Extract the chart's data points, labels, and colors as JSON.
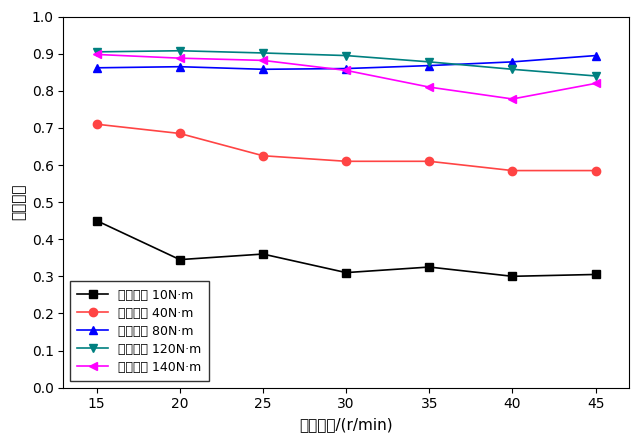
{
  "x": [
    15,
    20,
    25,
    30,
    35,
    40,
    45
  ],
  "series": [
    {
      "label": "输出转矩 10N·m",
      "color": "#000000",
      "marker": "s",
      "markerface": "#000000",
      "values": [
        0.45,
        0.345,
        0.36,
        0.31,
        0.325,
        0.3,
        0.305
      ]
    },
    {
      "label": "输出转矩 40N·m",
      "color": "#ff4444",
      "marker": "o",
      "markerface": "#ff4444",
      "values": [
        0.71,
        0.685,
        0.625,
        0.61,
        0.61,
        0.585,
        0.585
      ]
    },
    {
      "label": "输出转矩 80N·m",
      "color": "#0000ff",
      "marker": "^",
      "markerface": "#0000ff",
      "values": [
        0.862,
        0.865,
        0.858,
        0.86,
        0.868,
        0.878,
        0.895
      ]
    },
    {
      "label": "输出转矩 120N·m",
      "color": "#008080",
      "marker": "v",
      "markerface": "#008080",
      "values": [
        0.905,
        0.908,
        0.902,
        0.895,
        0.878,
        0.858,
        0.84
      ]
    },
    {
      "label": "输出转矩 140N·m",
      "color": "#ff00ff",
      "marker": "<",
      "markerface": "#ff00ff",
      "values": [
        0.898,
        0.888,
        0.882,
        0.855,
        0.81,
        0.778,
        0.82
      ]
    }
  ],
  "xlabel": "输出转速/(r/min)",
  "ylabel": "功率因数",
  "xlim": [
    13,
    47
  ],
  "xticks": [
    15,
    20,
    25,
    30,
    35,
    40,
    45
  ],
  "ylim": [
    0.0,
    1.0
  ],
  "yticks": [
    0.0,
    0.1,
    0.2,
    0.3,
    0.4,
    0.5,
    0.6,
    0.7,
    0.8,
    0.9,
    1.0
  ],
  "legend_loc": "lower left",
  "background_color": "#ffffff",
  "font_size_labels": 11,
  "font_size_ticks": 10,
  "line_width": 1.2,
  "marker_size": 6
}
